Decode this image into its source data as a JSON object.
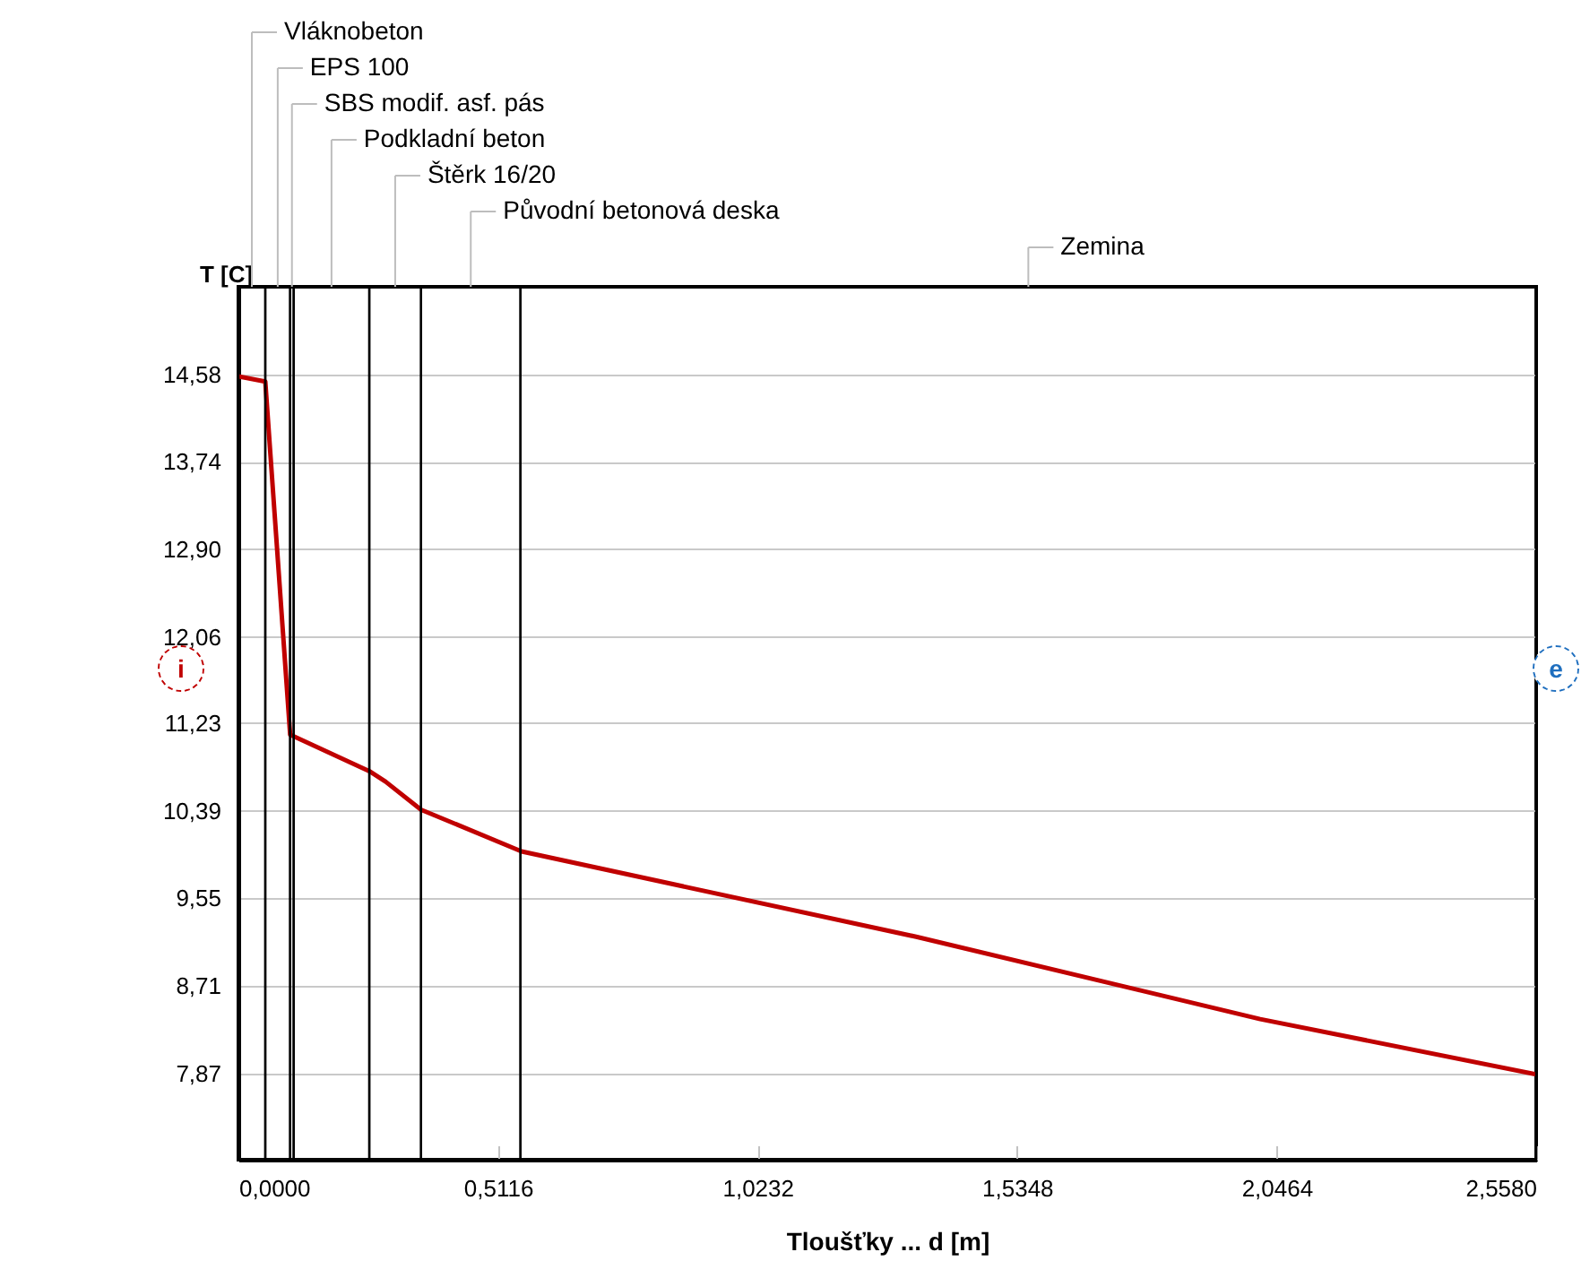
{
  "chart_data": {
    "type": "line",
    "xlabel": "Tloušťky ... d [m]",
    "ylabel": "T [C]",
    "x": [
      0,
      0.053,
      0.102,
      0.258,
      0.29,
      0.36,
      0.558,
      1.336,
      2.014,
      2.558
    ],
    "series": [
      {
        "color": "#c00000",
        "values": [
          14.56,
          14.51,
          11.12,
          10.77,
          10.67,
          10.4,
          10.0,
          9.18,
          8.39,
          7.86
        ]
      }
    ],
    "xlim": [
      0,
      2.558
    ],
    "xticks": [
      {
        "value": 0,
        "label": "0,0000"
      },
      {
        "value": 0.5116,
        "label": "0,5116"
      },
      {
        "value": 1.0232,
        "label": "1,0232"
      },
      {
        "value": 1.5348,
        "label": "1,5348"
      },
      {
        "value": 2.0464,
        "label": "2,0464"
      },
      {
        "value": 2.558,
        "label": "2,5580"
      }
    ],
    "ylim": [
      7.04,
      15.42
    ],
    "yticks": [
      {
        "value": 7.87,
        "label": "7,87"
      },
      {
        "value": 8.71,
        "label": "8,71"
      },
      {
        "value": 9.55,
        "label": "9,55"
      },
      {
        "value": 10.39,
        "label": "10,39"
      },
      {
        "value": 11.23,
        "label": "11,23"
      },
      {
        "value": 12.06,
        "label": "12,06"
      },
      {
        "value": 12.9,
        "label": "12,90"
      },
      {
        "value": 13.74,
        "label": "13,74"
      },
      {
        "value": 14.58,
        "label": "14,58"
      }
    ],
    "grid": "y",
    "bands": [
      {
        "axis": "x",
        "from": 0,
        "to": 0.053,
        "label": "Vláknobeton"
      },
      {
        "axis": "x",
        "from": 0.053,
        "to": 0.102,
        "label": "EPS 100"
      },
      {
        "axis": "x",
        "from": 0.102,
        "to": 0.109,
        "label": "SBS modif. asf. pás"
      },
      {
        "axis": "x",
        "from": 0.109,
        "to": 0.258,
        "label": "Podkladní beton"
      },
      {
        "axis": "x",
        "from": 0.258,
        "to": 0.36,
        "label": "Štěrk 16/20"
      },
      {
        "axis": "x",
        "from": 0.36,
        "to": 0.556,
        "label": "Původní betonová deska"
      },
      {
        "axis": "x",
        "from": 0.556,
        "to": 2.558,
        "label": "Zemina"
      }
    ],
    "annotations": [
      "i",
      "e"
    ]
  }
}
